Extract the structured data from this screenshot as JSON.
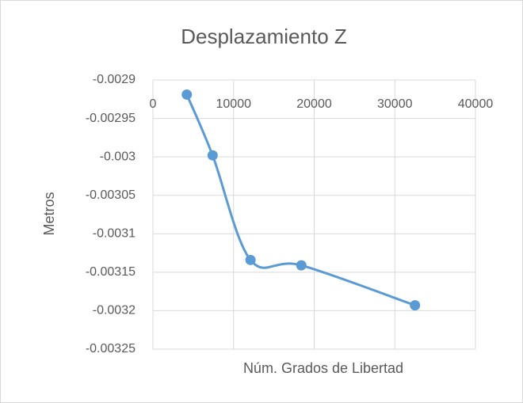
{
  "chart_data": {
    "type": "scatter",
    "title": "Desplazamiento Z",
    "xlabel": "Núm. Grados de Libertad",
    "ylabel": "Metros",
    "series": [
      {
        "name": "Desplazamiento Z",
        "color": "#5b9bd5",
        "x": [
          4200,
          7400,
          12100,
          18400,
          32500
        ],
        "values": [
          -0.002919,
          -0.002998,
          -0.003134,
          -0.003141,
          -0.003193
        ]
      }
    ],
    "xlim": [
      0,
      40000
    ],
    "xticks": [
      0,
      10000,
      20000,
      30000,
      40000
    ],
    "ylim": [
      -0.00325,
      -0.0029
    ],
    "yticks": [
      -0.0029,
      -0.00295,
      -0.003,
      -0.00305,
      -0.0031,
      -0.00315,
      -0.0032,
      -0.00325
    ],
    "grid": true,
    "smooth": true
  }
}
